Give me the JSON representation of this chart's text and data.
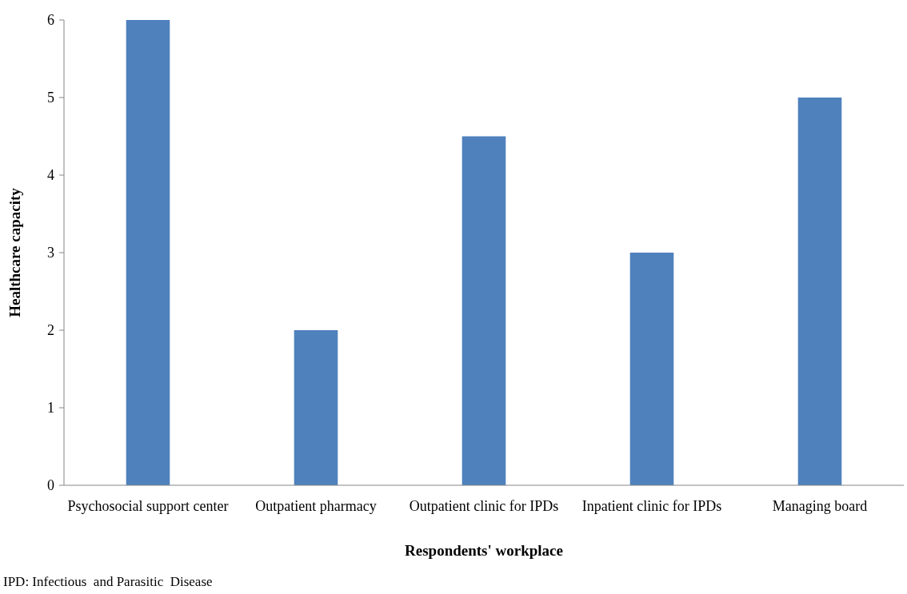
{
  "chart_data": {
    "type": "bar",
    "xlabel": "Respondents' workplace",
    "ylabel": "Healthcare capacity",
    "categories": [
      "Psychosocial support center",
      "Outpatient pharmacy",
      "Outpatient clinic for IPDs",
      "Inpatient clinic for IPDs",
      "Managing board"
    ],
    "values": [
      6,
      2,
      4.5,
      3,
      5
    ],
    "color": "#4f81bd",
    "ylim": [
      0,
      6
    ],
    "yticks": [
      0,
      1,
      2,
      3,
      4,
      5,
      6
    ],
    "grid": false,
    "annotations": [
      "IPD: Infectious  and Parasitic  Disease"
    ]
  }
}
